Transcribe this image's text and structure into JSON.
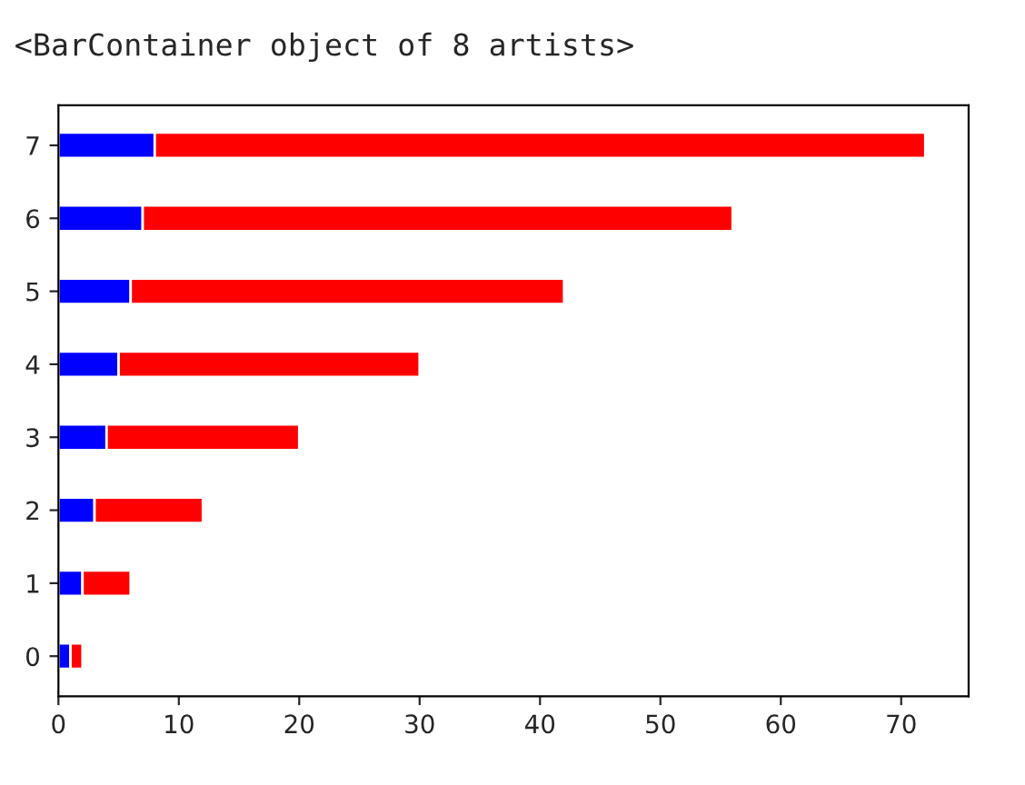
{
  "chart_data": {
    "type": "bar",
    "orientation": "horizontal",
    "stacked": true,
    "annotations": [
      "<BarContainer object of 8 artists>"
    ],
    "categories": [
      "7",
      "6",
      "5",
      "4",
      "3",
      "2",
      "1",
      "0"
    ],
    "series": [
      {
        "color": "#0000ff",
        "values": [
          8,
          7,
          6,
          5,
          4,
          3,
          2,
          1
        ]
      },
      {
        "color": "#ff0000",
        "values": [
          64,
          49,
          36,
          25,
          16,
          9,
          4,
          1
        ]
      }
    ],
    "xlim": [
      0,
      75.6
    ],
    "xticks": [
      0,
      10,
      20,
      30,
      40,
      50,
      60,
      70
    ],
    "grid": false,
    "legend": false
  }
}
